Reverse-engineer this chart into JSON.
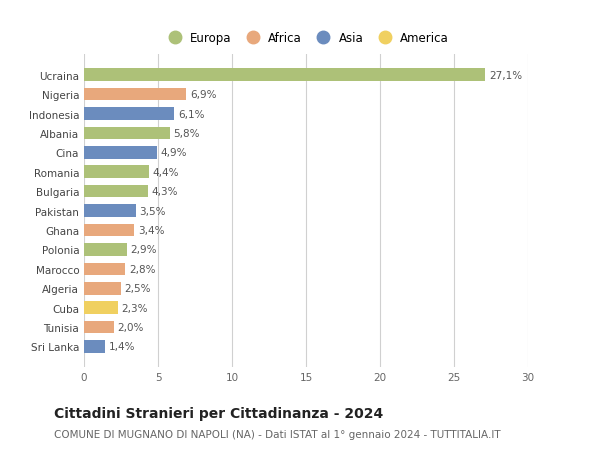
{
  "countries": [
    "Ucraina",
    "Nigeria",
    "Indonesia",
    "Albania",
    "Cina",
    "Romania",
    "Bulgaria",
    "Pakistan",
    "Ghana",
    "Polonia",
    "Marocco",
    "Algeria",
    "Cuba",
    "Tunisia",
    "Sri Lanka"
  ],
  "values": [
    27.1,
    6.9,
    6.1,
    5.8,
    4.9,
    4.4,
    4.3,
    3.5,
    3.4,
    2.9,
    2.8,
    2.5,
    2.3,
    2.0,
    1.4
  ],
  "labels": [
    "27,1%",
    "6,9%",
    "6,1%",
    "5,8%",
    "4,9%",
    "4,4%",
    "4,3%",
    "3,5%",
    "3,4%",
    "2,9%",
    "2,8%",
    "2,5%",
    "2,3%",
    "2,0%",
    "1,4%"
  ],
  "continents": [
    "Europa",
    "Africa",
    "Asia",
    "Europa",
    "Asia",
    "Europa",
    "Europa",
    "Asia",
    "Africa",
    "Europa",
    "Africa",
    "Africa",
    "America",
    "Africa",
    "Asia"
  ],
  "continent_colors": {
    "Europa": "#adc178",
    "Africa": "#e8a87c",
    "Asia": "#6b8cbe",
    "America": "#f0d060"
  },
  "legend_order": [
    "Europa",
    "Africa",
    "Asia",
    "America"
  ],
  "title": "Cittadini Stranieri per Cittadinanza - 2024",
  "subtitle": "COMUNE DI MUGNANO DI NAPOLI (NA) - Dati ISTAT al 1° gennaio 2024 - TUTTITALIA.IT",
  "xlim": [
    0,
    30
  ],
  "xticks": [
    0,
    5,
    10,
    15,
    20,
    25,
    30
  ],
  "bg_color": "#ffffff",
  "bar_height": 0.65,
  "grid_color": "#d0d0d0",
  "title_fontsize": 10,
  "subtitle_fontsize": 7.5,
  "tick_fontsize": 7.5,
  "label_fontsize": 7.5
}
